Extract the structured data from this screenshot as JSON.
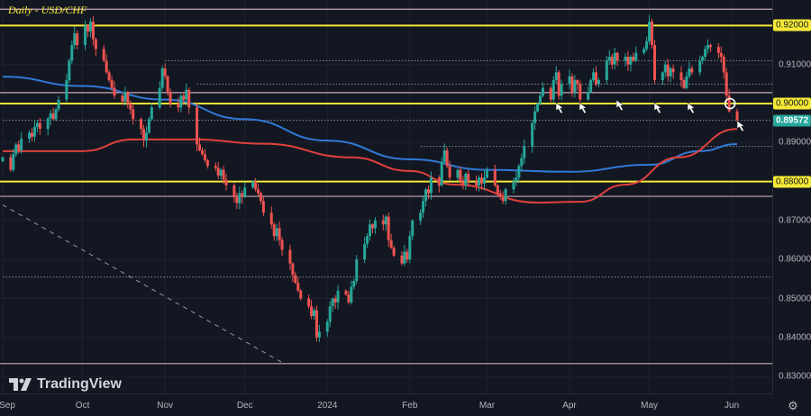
{
  "title": "Daily - USD/CHF",
  "logo_text": "TradingView",
  "settings_icon": "gear-icon",
  "colors": {
    "up": "#26a69a",
    "down": "#ef5350",
    "key_level": "#f5e936",
    "minor_level": "#c9a9b4",
    "ma_blue": "#2f7ad6",
    "ma_red": "#e0413d",
    "background": "#131722"
  },
  "chart_data": {
    "type": "candlestick",
    "symbol": "USD/CHF",
    "interval": "Daily",
    "ylim": [
      0.829,
      0.927
    ],
    "grid": true,
    "last_price": "0.89572",
    "y_ticks": [
      "0.92000",
      "0.91000",
      "0.90000",
      "0.89000",
      "0.88000",
      "0.87000",
      "0.86000",
      "0.85000",
      "0.84000",
      "0.83000"
    ],
    "highlighted_ticks": [
      "0.92000",
      "0.90000",
      "0.88000"
    ],
    "x_ticks": [
      {
        "label": "Sep",
        "date": "2023-09-01"
      },
      {
        "label": "Oct",
        "date": "2023-10-01"
      },
      {
        "label": "Nov",
        "date": "2023-11-01"
      },
      {
        "label": "Dec",
        "date": "2023-12-01"
      },
      {
        "label": "2024",
        "date": "2024-01-01"
      },
      {
        "label": "Feb",
        "date": "2024-02-01"
      },
      {
        "label": "Mar",
        "date": "2024-03-01"
      },
      {
        "label": "Apr",
        "date": "2024-04-01"
      },
      {
        "label": "May",
        "date": "2024-05-01"
      },
      {
        "label": "Jun",
        "date": "2024-06-01"
      }
    ],
    "daily_closes_by_month": {
      "2023-09": [
        0.8862,
        0.883,
        0.887,
        0.8895,
        0.888,
        0.891,
        0.8925,
        0.8915,
        0.894,
        0.895,
        0.8935,
        0.8962,
        0.8975,
        0.896,
        0.8985,
        0.901,
        0.906,
        0.911,
        0.915,
        0.918,
        0.915
      ],
      "2023-10": [
        0.92,
        0.9185,
        0.921,
        0.9165,
        0.914,
        0.911,
        0.908,
        0.906,
        0.904,
        0.902,
        0.9005,
        0.903,
        0.9,
        0.8985,
        0.896,
        0.8935,
        0.8905,
        0.8925,
        0.896,
        0.899,
        0.904,
        0.909
      ],
      "2023-11": [
        0.907,
        0.903,
        0.9,
        0.899,
        0.902,
        0.901,
        0.9035,
        0.899,
        0.8895,
        0.888,
        0.887,
        0.8855,
        0.884,
        0.8835,
        0.8815,
        0.883,
        0.8805,
        0.879,
        0.876,
        0.8745,
        0.877,
        0.876
      ],
      "2023-12": [
        0.8785,
        0.88,
        0.878,
        0.877,
        0.875,
        0.872,
        0.869,
        0.866,
        0.868,
        0.865,
        0.8625,
        0.859,
        0.856,
        0.854,
        0.852,
        0.85,
        0.848,
        0.8455,
        0.847,
        0.84,
        0.8415
      ],
      "2024-01": [
        0.844,
        0.848,
        0.85,
        0.849,
        0.852,
        0.851,
        0.849,
        0.853,
        0.8545,
        0.86,
        0.864,
        0.866,
        0.869,
        0.868,
        0.87,
        0.869,
        0.871,
        0.865,
        0.863,
        0.861,
        0.859,
        0.862,
        0.86
      ],
      "2024-02": [
        0.866,
        0.87,
        0.872,
        0.875,
        0.878,
        0.877,
        0.881,
        0.879,
        0.885,
        0.888,
        0.884,
        0.881,
        0.883,
        0.88,
        0.879,
        0.882,
        0.88,
        0.879,
        0.881,
        0.8795,
        0.881
      ],
      "2024-03": [
        0.883,
        0.879,
        0.877,
        0.876,
        0.875,
        0.878,
        0.88,
        0.881,
        0.884,
        0.886,
        0.889,
        0.895,
        0.898,
        0.9,
        0.902,
        0.904,
        0.901,
        0.906,
        0.908,
        0.902,
        0.905
      ],
      "2024-04": [
        0.907,
        0.903,
        0.906,
        0.905,
        0.901,
        0.903,
        0.906,
        0.908,
        0.905,
        0.906,
        0.911,
        0.912,
        0.91,
        0.913,
        0.911,
        0.912,
        0.91,
        0.912,
        0.911,
        0.913,
        0.914,
        0.916
      ],
      "2024-05": [
        0.921,
        0.915,
        0.906,
        0.908,
        0.91,
        0.907,
        0.909,
        0.908,
        0.906,
        0.904,
        0.907,
        0.909,
        0.908,
        0.911,
        0.912,
        0.914,
        0.915,
        0.9145,
        0.913,
        0.912,
        0.908,
        0.902,
        0.898
      ],
      "2024-06": [
        0.8957
      ]
    },
    "moving_averages": [
      {
        "color": "#2f7ad6",
        "points": [
          [
            "2023-09-01",
            0.9069
          ],
          [
            "2023-10-01",
            0.9045
          ],
          [
            "2023-11-01",
            0.901
          ],
          [
            "2023-12-01",
            0.896
          ],
          [
            "2024-01-01",
            0.8905
          ],
          [
            "2024-02-01",
            0.8857
          ],
          [
            "2024-03-01",
            0.883
          ],
          [
            "2024-04-01",
            0.8825
          ],
          [
            "2024-05-01",
            0.8843
          ],
          [
            "2024-05-20",
            0.8878
          ],
          [
            "2024-06-03",
            0.8896
          ]
        ]
      },
      {
        "color": "#e0413d",
        "points": [
          [
            "2023-09-01",
            0.8878
          ],
          [
            "2023-10-01",
            0.8878
          ],
          [
            "2023-10-20",
            0.8908
          ],
          [
            "2023-11-12",
            0.8908
          ],
          [
            "2023-12-08",
            0.8897
          ],
          [
            "2024-01-10",
            0.8862
          ],
          [
            "2024-02-01",
            0.8827
          ],
          [
            "2024-02-18",
            0.8792
          ],
          [
            "2024-03-20",
            0.8746
          ],
          [
            "2024-04-05",
            0.8748
          ],
          [
            "2024-04-22",
            0.8792
          ],
          [
            "2024-05-12",
            0.8862
          ],
          [
            "2024-06-03",
            0.8935
          ]
        ]
      }
    ],
    "horizontal_levels": [
      {
        "price": 0.92,
        "style": "key"
      },
      {
        "price": 0.9,
        "style": "key"
      },
      {
        "price": 0.88,
        "style": "key"
      },
      {
        "price": 0.9242,
        "style": "minor"
      },
      {
        "price": 0.9028,
        "style": "minor"
      },
      {
        "price": 0.8762,
        "style": "minor"
      },
      {
        "price": 0.8333,
        "style": "minor"
      },
      {
        "price": 0.911,
        "style": "dotted",
        "from": "2023-11-01"
      },
      {
        "price": 0.905,
        "style": "dotted",
        "from": "2023-11-13"
      },
      {
        "price": 0.8957,
        "style": "dotted",
        "from": "2023-09-01"
      },
      {
        "price": 0.889,
        "style": "dotted",
        "from": "2024-02-05"
      },
      {
        "price": 0.8555,
        "style": "dotted",
        "from": "2023-09-01"
      }
    ],
    "trend_line": {
      "from": [
        "2023-09-01",
        0.874
      ],
      "to": [
        "2023-12-15",
        0.8336
      ],
      "style": "dashed"
    },
    "annotations": {
      "support_arrows": [
        "cursor-arrow-icon",
        "cursor-arrow-icon",
        "cursor-arrow-icon",
        "cursor-arrow-icon",
        "cursor-arrow-icon",
        "cursor-arrow-icon"
      ],
      "circle_marker": {
        "date": "2024-05-31",
        "price": 0.9
      }
    }
  }
}
